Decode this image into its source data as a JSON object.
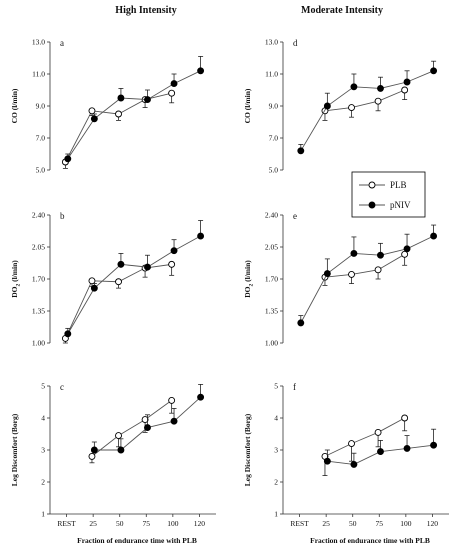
{
  "column_titles": [
    "High Intensity",
    "Moderate Intensity"
  ],
  "x_categories": [
    "REST",
    "25",
    "50",
    "75",
    "100",
    "120"
  ],
  "xlabel": "Fraction of endurance time with PLB",
  "legend": {
    "series": [
      "PLB",
      "pNIV"
    ]
  },
  "chart_data": [
    {
      "type": "line",
      "panel": "a",
      "column": "High Intensity",
      "ylabel": "CO (l/min)",
      "ylim": [
        5.0,
        13.0
      ],
      "yticks": [
        "5.0",
        "7.0",
        "9.0",
        "11.0",
        "13.0"
      ],
      "series": [
        {
          "name": "PLB",
          "marker": "open",
          "x": [
            0,
            25,
            50,
            75,
            100
          ],
          "y": [
            5.5,
            8.7,
            8.5,
            9.4,
            9.8
          ],
          "err": [
            0.4,
            0.3,
            0.4,
            0.5,
            0.6
          ]
        },
        {
          "name": "pNIV",
          "marker": "filled",
          "x": [
            0,
            25,
            50,
            75,
            100,
            120
          ],
          "y": [
            5.7,
            8.2,
            9.5,
            9.4,
            10.4,
            11.2
          ],
          "err": [
            0.3,
            0.3,
            0.6,
            0.6,
            0.6,
            0.9
          ]
        }
      ]
    },
    {
      "type": "line",
      "panel": "d",
      "column": "Moderate Intensity",
      "ylabel": "CO (l/min)",
      "ylim": [
        5.0,
        13.0
      ],
      "yticks": [
        "5.0",
        "7.0",
        "9.0",
        "11.0",
        "13.0"
      ],
      "series": [
        {
          "name": "PLB",
          "marker": "open",
          "x": [
            25,
            50,
            75,
            100
          ],
          "y": [
            8.7,
            8.9,
            9.3,
            10.0
          ],
          "err": [
            0.6,
            0.6,
            0.6,
            0.6
          ]
        },
        {
          "name": "pNIV",
          "marker": "filled",
          "x": [
            0,
            25,
            50,
            75,
            100,
            120
          ],
          "y": [
            6.2,
            9.0,
            10.2,
            10.1,
            10.5,
            11.2
          ],
          "err": [
            0.4,
            0.8,
            0.8,
            0.7,
            0.7,
            0.6
          ]
        }
      ]
    },
    {
      "type": "line",
      "panel": "b",
      "column": "High Intensity",
      "ylabel": "DO2 (l/min)",
      "ylim": [
        1.0,
        2.4
      ],
      "yticks": [
        "1.00",
        "1.35",
        "1.70",
        "2.05",
        "2.40"
      ],
      "series": [
        {
          "name": "PLB",
          "marker": "open",
          "x": [
            0,
            25,
            50,
            75,
            100
          ],
          "y": [
            1.05,
            1.68,
            1.67,
            1.82,
            1.86
          ],
          "err": [
            0.05,
            0.06,
            0.07,
            0.1,
            0.12
          ]
        },
        {
          "name": "pNIV",
          "marker": "filled",
          "x": [
            0,
            25,
            50,
            75,
            100,
            120
          ],
          "y": [
            1.1,
            1.6,
            1.86,
            1.83,
            2.01,
            2.17
          ],
          "err": [
            0.06,
            0.05,
            0.12,
            0.13,
            0.12,
            0.17
          ]
        }
      ]
    },
    {
      "type": "line",
      "panel": "e",
      "column": "Moderate Intensity",
      "ylabel": "DO2 (l/min)",
      "ylim": [
        1.0,
        2.4
      ],
      "yticks": [
        "1.00",
        "1.35",
        "1.70",
        "2.05",
        "2.40"
      ],
      "series": [
        {
          "name": "PLB",
          "marker": "open",
          "x": [
            25,
            50,
            75,
            100
          ],
          "y": [
            1.72,
            1.75,
            1.8,
            1.97
          ],
          "err": [
            0.09,
            0.1,
            0.1,
            0.12
          ]
        },
        {
          "name": "pNIV",
          "marker": "filled",
          "x": [
            0,
            25,
            50,
            75,
            100,
            120
          ],
          "y": [
            1.22,
            1.76,
            1.98,
            1.96,
            2.03,
            2.17
          ],
          "err": [
            0.08,
            0.16,
            0.18,
            0.13,
            0.16,
            0.12
          ]
        }
      ]
    },
    {
      "type": "line",
      "panel": "c",
      "column": "High Intensity",
      "ylabel": "Leg Discomfort (Borg)",
      "ylim": [
        1,
        5
      ],
      "yticks": [
        "1",
        "2",
        "3",
        "4",
        "5"
      ],
      "series": [
        {
          "name": "PLB",
          "marker": "open",
          "x": [
            25,
            50,
            75,
            100
          ],
          "y": [
            2.8,
            3.45,
            3.95,
            4.55
          ],
          "err": [
            0.2,
            0.35,
            0.4,
            0.4
          ]
        },
        {
          "name": "pNIV",
          "marker": "filled",
          "x": [
            25,
            50,
            75,
            100,
            120
          ],
          "y": [
            3.0,
            3.0,
            3.7,
            3.9,
            4.65
          ],
          "err": [
            0.25,
            0.35,
            0.4,
            0.4,
            0.4
          ]
        }
      ]
    },
    {
      "type": "line",
      "panel": "f",
      "column": "Moderate Intensity",
      "ylabel": "Leg Discomfort (Borg)",
      "ylim": [
        1,
        5
      ],
      "yticks": [
        "1",
        "2",
        "3",
        "4",
        "5"
      ],
      "series": [
        {
          "name": "PLB",
          "marker": "open",
          "x": [
            25,
            50,
            75,
            100
          ],
          "y": [
            2.8,
            3.2,
            3.55,
            4.0
          ],
          "err": [
            0.6,
            0.55,
            0.45,
            0.4
          ]
        },
        {
          "name": "pNIV",
          "marker": "filled",
          "x": [
            25,
            50,
            75,
            100,
            120
          ],
          "y": [
            2.65,
            2.55,
            2.95,
            3.05,
            3.15
          ],
          "err": [
            0.35,
            0.35,
            0.35,
            0.4,
            0.5
          ]
        }
      ]
    }
  ]
}
